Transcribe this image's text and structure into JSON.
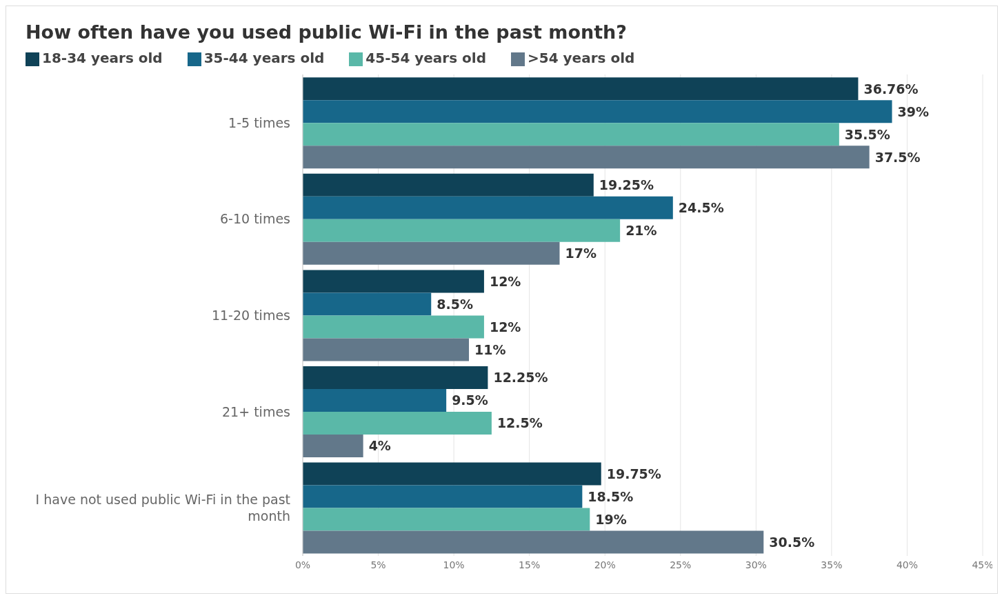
{
  "chart_data": {
    "type": "bar",
    "orientation": "horizontal",
    "title": "How often have you used public Wi-Fi in the past month?",
    "categories": [
      "1-5 times",
      "6-10 times",
      "11-20 times",
      "21+ times",
      "I have not used public Wi-Fi in the past month"
    ],
    "series": [
      {
        "name": "18-34 years old",
        "color": "#0f4257",
        "values": [
          36.76,
          19.25,
          12,
          12.25,
          19.75
        ],
        "value_labels": [
          "36.76%",
          "19.25%",
          "12%",
          "12.25%",
          "19.75%"
        ]
      },
      {
        "name": "35-44 years old",
        "color": "#17678a",
        "values": [
          39,
          24.5,
          8.5,
          9.5,
          18.5
        ],
        "value_labels": [
          "39%",
          "24.5%",
          "8.5%",
          "9.5%",
          "18.5%"
        ]
      },
      {
        "name": "45-54 years old",
        "color": "#5ab8a8",
        "values": [
          35.5,
          21,
          12,
          12.5,
          19
        ],
        "value_labels": [
          "35.5%",
          "21%",
          "12%",
          "12.5%",
          "19%"
        ]
      },
      {
        "name": ">54 years old",
        "color": "#62788a",
        "values": [
          37.5,
          17,
          11,
          4,
          30.5
        ],
        "value_labels": [
          "37.5%",
          "17%",
          "11%",
          "4%",
          "30.5%"
        ]
      }
    ],
    "xlim": [
      0,
      45
    ],
    "xticks": [
      {
        "value": 0,
        "label": "0%"
      },
      {
        "value": 5,
        "label": "5%"
      },
      {
        "value": 10,
        "label": "10%"
      },
      {
        "value": 15,
        "label": "15%"
      },
      {
        "value": 20,
        "label": "20%"
      },
      {
        "value": 25,
        "label": "25%"
      },
      {
        "value": 30,
        "label": "30%"
      },
      {
        "value": 35,
        "label": "35%"
      },
      {
        "value": 40,
        "label": "40%"
      },
      {
        "value": 45,
        "label": "45%"
      }
    ],
    "grid": "x",
    "legend": "top left"
  }
}
